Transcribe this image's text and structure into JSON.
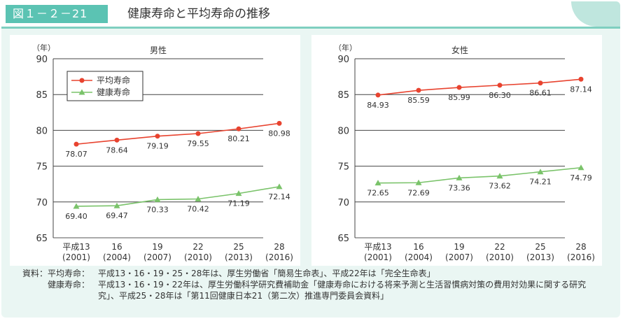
{
  "header": {
    "figure_label": "図１－２－21",
    "title": "健康寿命と平均寿命の推移"
  },
  "notes": {
    "prefix": "資料：",
    "rows": [
      {
        "label": "平均寿命：",
        "text": "平成13・16・19・25・28年は、厚生労働省「簡易生命表」、平成22年は「完全生命表」"
      },
      {
        "label": "健康寿命：",
        "text": "平成13・16・19・22年は、厚生労働科学研究費補助金「健康寿命における将来予測と生活習慣病対策の費用対効果に関する研究"
      }
    ],
    "continuation": "究」、平成25・28年は「第11回健康日本21（第二次）推進専門委員会資料」"
  },
  "colors": {
    "avg": "#e8432f",
    "healthy": "#7ac36a",
    "grid": "#9a9a9a"
  },
  "chart_data": [
    {
      "type": "line",
      "title": "男性",
      "y_unit": "（年）",
      "x_unit": "（年）",
      "ylim": [
        65,
        90
      ],
      "yticks": [
        65,
        70,
        75,
        80,
        85,
        90
      ],
      "categories": [
        {
          "top": "平成13",
          "bottom": "(2001)"
        },
        {
          "top": "16",
          "bottom": "(2004)"
        },
        {
          "top": "19",
          "bottom": "(2007)"
        },
        {
          "top": "22",
          "bottom": "(2010)"
        },
        {
          "top": "25",
          "bottom": "(2013)"
        },
        {
          "top": "28",
          "bottom": "(2016)"
        }
      ],
      "legend": {
        "position": "top-left",
        "show": true
      },
      "series": [
        {
          "name": "平均寿命",
          "values": [
            78.07,
            78.64,
            79.19,
            79.55,
            80.21,
            80.98
          ],
          "labels": [
            "78.07",
            "78.64",
            "79.19",
            "79.55",
            "80.21",
            "80.98"
          ]
        },
        {
          "name": "健康寿命",
          "values": [
            69.4,
            69.47,
            70.33,
            70.42,
            71.19,
            72.14
          ],
          "labels": [
            "69.40",
            "69.47",
            "70.33",
            "70.42",
            "71.19",
            "72.14"
          ]
        }
      ]
    },
    {
      "type": "line",
      "title": "女性",
      "y_unit": "（年）",
      "x_unit": "（年）",
      "ylim": [
        65,
        90
      ],
      "yticks": [
        65,
        70,
        75,
        80,
        85,
        90
      ],
      "categories": [
        {
          "top": "平成13",
          "bottom": "(2001)"
        },
        {
          "top": "16",
          "bottom": "(2004)"
        },
        {
          "top": "19",
          "bottom": "(2007)"
        },
        {
          "top": "22",
          "bottom": "(2010)"
        },
        {
          "top": "25",
          "bottom": "(2013)"
        },
        {
          "top": "28",
          "bottom": "(2016)"
        }
      ],
      "legend": {
        "show": false
      },
      "series": [
        {
          "name": "平均寿命",
          "values": [
            84.93,
            85.59,
            85.99,
            86.3,
            86.61,
            87.14
          ],
          "labels": [
            "84.93",
            "85.59",
            "85.99",
            "86.30",
            "86.61",
            "87.14"
          ]
        },
        {
          "name": "健康寿命",
          "values": [
            72.65,
            72.69,
            73.36,
            73.62,
            74.21,
            74.79
          ],
          "labels": [
            "72.65",
            "72.69",
            "73.36",
            "73.62",
            "74.21",
            "74.79"
          ]
        }
      ]
    }
  ]
}
